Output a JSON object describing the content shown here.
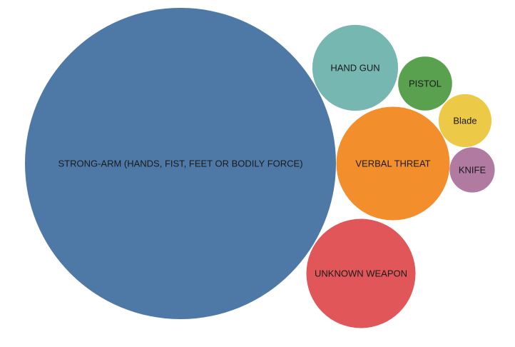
{
  "chart_data": {
    "type": "bubble",
    "title": "",
    "series": [
      {
        "label": "STRONG-ARM (HANDS, FIST, FEET OR BODILY FORCE)",
        "value": 100,
        "color": "#4e79a7"
      },
      {
        "label": "HAND GUN",
        "value": 7.6,
        "color": "#76b7b2"
      },
      {
        "label": "PISTOL",
        "value": 3.0,
        "color": "#59a14f"
      },
      {
        "label": "Blade",
        "value": 2.9,
        "color": "#edc948"
      },
      {
        "label": "VERBAL THREAT",
        "value": 13.3,
        "color": "#f28e2b"
      },
      {
        "label": "KNIFE",
        "value": 2.1,
        "color": "#b07aa1"
      },
      {
        "label": "UNKNOWN WEAPON",
        "value": 12.3,
        "color": "#e15759"
      }
    ]
  }
}
